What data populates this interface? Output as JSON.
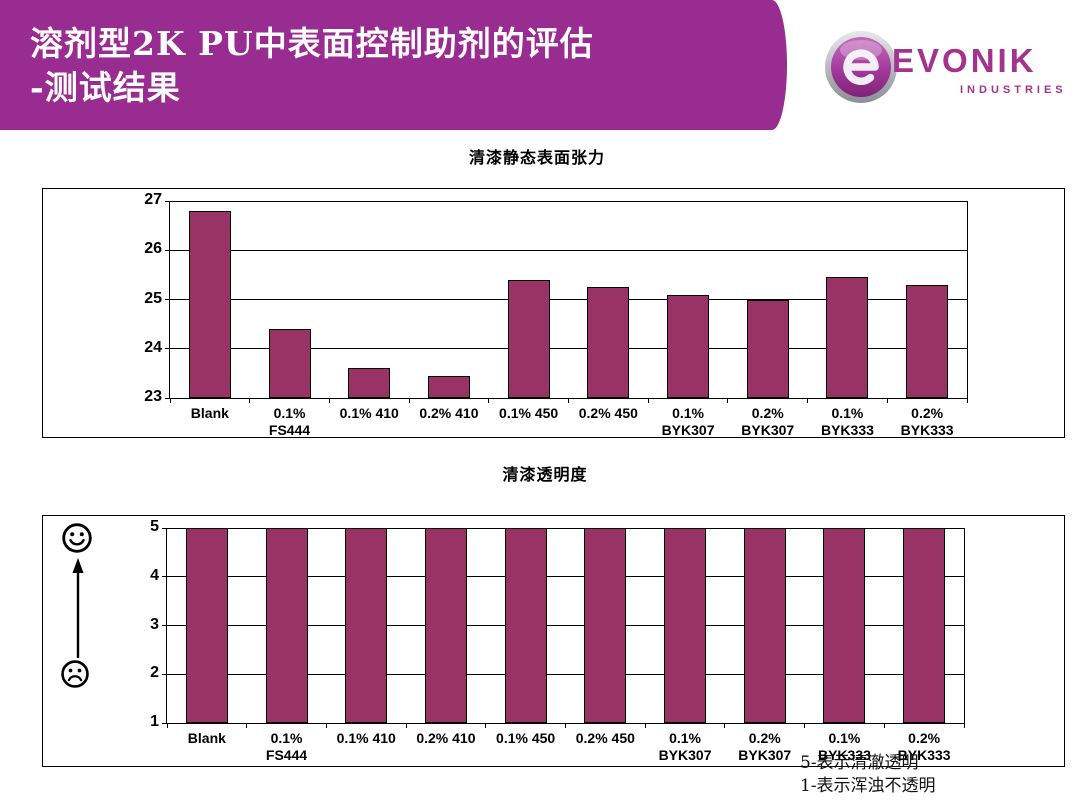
{
  "header": {
    "title_line1": "溶剂型2K PU中表面控制助剂的评估",
    "title_line2": "-测试结果",
    "bg_color": "#992C90"
  },
  "logo": {
    "brand": "EVONIK",
    "industries": "INDUSTRIES",
    "color": "#A3338F",
    "emblem": "evonik-e-sphere"
  },
  "chart_data": [
    {
      "type": "bar",
      "title": "清漆静态表面张力",
      "categories": [
        "Blank",
        "0.1%\nFS444",
        "0.1% 410",
        "0.2% 410",
        "0.1% 450",
        "0.2% 450",
        "0.1%\nBYK307",
        "0.2%\nBYK307",
        "0.1%\nBYK333",
        "0.2%\nBYK333"
      ],
      "values": [
        26.8,
        24.4,
        23.6,
        23.45,
        25.4,
        25.25,
        25.1,
        25.0,
        25.45,
        25.3
      ],
      "ylim": [
        23,
        27
      ],
      "yticks": [
        23,
        24,
        25,
        26,
        27
      ],
      "bar_color": "#993366",
      "grid": true,
      "legend": false,
      "xlabel": "",
      "ylabel": ""
    },
    {
      "type": "bar",
      "title": "清漆透明度",
      "categories": [
        "Blank",
        "0.1%\nFS444",
        "0.1% 410",
        "0.2% 410",
        "0.1% 450",
        "0.2% 450",
        "0.1%\nBYK307",
        "0.2%\nBYK307",
        "0.1%\nBYK333",
        "0.2%\nBYK333"
      ],
      "values": [
        5,
        5,
        5,
        5,
        5,
        5,
        5,
        5,
        5,
        5
      ],
      "ylim": [
        1,
        5
      ],
      "yticks": [
        1,
        2,
        3,
        4,
        5
      ],
      "bar_color": "#993366",
      "grid": true,
      "legend": false,
      "xlabel": "",
      "ylabel": ""
    }
  ],
  "rating_scale": {
    "good_icon": "happy-face",
    "bad_icon": "sad-face",
    "direction_icon": "up-arrow"
  },
  "footer": {
    "line1": "5-表示清澈透明",
    "line2": "1-表示浑浊不透明"
  }
}
